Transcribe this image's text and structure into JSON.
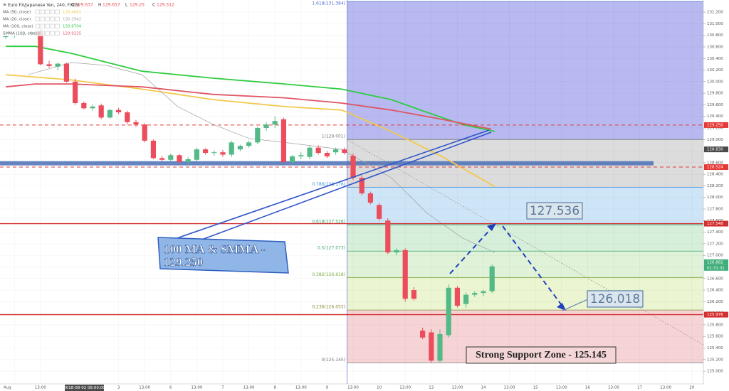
{
  "chart_data": {
    "type": "candlestick",
    "symbol": "Euro FX/Japanese Yen, 240, FXCM",
    "ohlc": [
      {
        "key": "O",
        "value": 129.637
      },
      {
        "key": "H",
        "value": 129.657
      },
      {
        "key": "L",
        "value": 129.25
      },
      {
        "key": "C",
        "value": 129.512
      }
    ],
    "up_color": "#53b987",
    "down_color": "#eb4d5c",
    "open": [
      130.77,
      130.79,
      130.8,
      130.82,
      130.86,
      130.3,
      130.26,
      130.31,
      130.0,
      129.63,
      129.54,
      129.59,
      129.38,
      129.51,
      129.47,
      129.3,
      129.26,
      128.98,
      128.68,
      128.65,
      128.73,
      128.61,
      128.65,
      128.83,
      128.77,
      128.78,
      128.74,
      128.83,
      128.89,
      128.95,
      129.2,
      129.26,
      129.35,
      128.61,
      128.71,
      128.7,
      128.86,
      128.77,
      128.78,
      128.83,
      128.72,
      128.34,
      128.07,
      127.87,
      127.6,
      127.05,
      127.09,
      126.4,
      125.7,
      125.67,
      125.18,
      125.62,
      126.44,
      126.16,
      126.32,
      126.35,
      126.38
    ],
    "high": [
      130.82,
      130.84,
      130.86,
      130.88,
      130.89,
      130.36,
      130.33,
      130.33,
      130.05,
      129.66,
      129.6,
      129.62,
      129.53,
      129.55,
      129.5,
      129.34,
      129.28,
      129.0,
      128.72,
      128.76,
      128.75,
      128.7,
      128.86,
      128.85,
      128.81,
      128.82,
      128.98,
      128.91,
      128.98,
      129.22,
      129.3,
      129.4,
      129.38,
      128.73,
      128.78,
      128.89,
      128.9,
      128.8,
      128.86,
      128.86,
      128.76,
      128.38,
      128.1,
      127.9,
      127.64,
      127.12,
      127.12,
      126.45,
      125.75,
      125.72,
      125.72,
      126.5,
      126.47,
      126.36,
      126.38,
      126.4,
      126.84
    ],
    "low": [
      130.74,
      130.76,
      130.78,
      130.79,
      130.28,
      130.24,
      130.2,
      129.98,
      129.6,
      129.52,
      129.5,
      129.35,
      129.36,
      129.44,
      129.26,
      129.22,
      128.95,
      128.66,
      128.62,
      128.62,
      128.58,
      128.58,
      128.62,
      128.74,
      128.72,
      128.7,
      128.7,
      128.8,
      128.86,
      128.92,
      129.15,
      129.2,
      128.58,
      128.58,
      128.66,
      128.66,
      128.74,
      128.68,
      128.74,
      128.74,
      128.3,
      128.04,
      127.88,
      127.6,
      127.02,
      127.0,
      126.2,
      126.22,
      125.55,
      125.15,
      125.15,
      125.58,
      126.1,
      126.1,
      126.28,
      126.3,
      126.35
    ],
    "close": [
      130.79,
      130.8,
      130.82,
      130.86,
      130.3,
      130.27,
      130.31,
      130.0,
      129.63,
      129.54,
      129.57,
      129.38,
      129.51,
      129.47,
      129.3,
      129.26,
      128.98,
      128.68,
      128.65,
      128.73,
      128.61,
      128.66,
      128.83,
      128.77,
      128.78,
      128.74,
      128.95,
      128.89,
      128.95,
      129.2,
      129.26,
      129.32,
      128.61,
      128.71,
      128.73,
      128.86,
      128.77,
      128.71,
      128.83,
      128.77,
      128.34,
      128.07,
      127.91,
      127.63,
      127.05,
      127.09,
      126.25,
      126.25,
      125.58,
      125.18,
      125.64,
      126.44,
      126.13,
      126.32,
      126.35,
      126.38,
      126.81
    ],
    "overlays": [
      {
        "name": "MA (50, close)",
        "legend_value": 130.4061,
        "color": "#f2c94c",
        "x": [
          0,
          7.5,
          15.7,
          23.9,
          32.1,
          38.7,
          44.4,
          50.2,
          56.3
        ],
        "values": [
          130.12,
          130.03,
          129.87,
          129.69,
          129.57,
          129.51,
          129.14,
          128.71,
          128.19
        ]
      },
      {
        "name": "MA (20, close)",
        "legend_value": 130.2942,
        "color": "#a0a0a0",
        "x": [
          2.6,
          7.5,
          11.6,
          15.7,
          19.8,
          23.9,
          28,
          32.1,
          38.7,
          44.4,
          48.5,
          52.6,
          56.3
        ],
        "values": [
          130.12,
          130.33,
          130.28,
          130.12,
          129.57,
          129.26,
          129.02,
          128.95,
          128.83,
          128.34,
          127.73,
          127.3,
          127.05
        ]
      },
      {
        "name": "MA (100, close)",
        "legend_value": 130.8704,
        "color": "#2ecc40",
        "x": [
          0,
          3.4,
          7.5,
          15.7,
          23.9,
          32.1,
          38.7,
          44.4,
          48.5,
          52.6,
          56.3
        ],
        "values": [
          130.61,
          130.61,
          130.49,
          130.18,
          130.06,
          129.96,
          129.87,
          129.69,
          129.47,
          129.26,
          129.14
        ]
      },
      {
        "name": "SMMA (100, close)",
        "legend_value": 129.9235,
        "color": "#e05563",
        "x": [
          0,
          3.4,
          7.5,
          15.7,
          23.9,
          32.1,
          38.7,
          44.4,
          50.2,
          55.9
        ],
        "values": [
          129.91,
          129.96,
          129.96,
          129.91,
          129.78,
          129.72,
          129.63,
          129.51,
          129.35,
          129.18
        ]
      }
    ],
    "x_labels": [
      "Aug",
      "13:00",
      null,
      null,
      "3",
      "13:00",
      "6",
      "13:00",
      "7",
      "13:00",
      "8",
      "13:00",
      "9",
      "13:00",
      "10",
      "13:00",
      "13",
      "13:00",
      "14",
      "13:00",
      "15",
      "13:00",
      "16",
      "13:00",
      "17",
      "13:00",
      "20"
    ],
    "cursor_label": "2018-08-02 08:00:00",
    "ylim": [
      124.78,
      131.41
    ],
    "yticks": [
      {
        "value": 131.2,
        "label": "131.200"
      },
      {
        "value": 131,
        "label": "131.000"
      },
      {
        "value": 130.8,
        "label": "130.800"
      },
      {
        "value": 130.6,
        "label": "130.600"
      },
      {
        "value": 130.4,
        "label": "130.400"
      },
      {
        "value": 130.2,
        "label": "130.200"
      },
      {
        "value": 130,
        "label": "130.000"
      },
      {
        "value": 129.8,
        "label": "129.800"
      },
      {
        "value": 129.6,
        "label": "129.600"
      },
      {
        "value": 129.4,
        "label": "129.400"
      },
      {
        "value": 129.2,
        "label": "129.200"
      },
      {
        "value": 129,
        "label": "129.000"
      },
      {
        "value": 128.8,
        "label": "128.800"
      },
      {
        "value": 128.6,
        "label": "128.600"
      },
      {
        "value": 128.4,
        "label": "128.400"
      },
      {
        "value": 128.2,
        "label": "128.200"
      },
      {
        "value": 128,
        "label": "128.000"
      },
      {
        "value": 127.8,
        "label": "127.800"
      },
      {
        "value": 127.6,
        "label": "127.600"
      },
      {
        "value": 127.4,
        "label": "127.400"
      },
      {
        "value": 127.2,
        "label": "127.200"
      },
      {
        "value": 127,
        "label": "127.000"
      },
      {
        "value": 126.8,
        "label": "126.800"
      },
      {
        "value": 126.6,
        "label": "126.600"
      },
      {
        "value": 126.4,
        "label": "126.400"
      },
      {
        "value": 126.2,
        "label": "126.200"
      },
      {
        "value": 126,
        "label": "126.000"
      },
      {
        "value": 125.8,
        "label": "125.800"
      },
      {
        "value": 125.6,
        "label": "125.600"
      },
      {
        "value": 125.4,
        "label": "125.400"
      },
      {
        "value": 125.2,
        "label": "125.200"
      },
      {
        "value": 125,
        "label": "125.000"
      }
    ],
    "grid": true,
    "fib_levels": [
      {
        "value": 131.384,
        "label": "1.618(131.384)",
        "color": "#4d6fd0"
      },
      {
        "value": 129.001,
        "label": "1(129.001)",
        "color": "#777777"
      },
      {
        "value": 128.176,
        "label": "0.786(128.176)",
        "color": "#3d8fd6"
      },
      {
        "value": 127.528,
        "label": "0.618(127.528)",
        "color": "#3aa76d"
      },
      {
        "value": 127.073,
        "label": "0.5(127.073)",
        "color": "#3aa76d"
      },
      {
        "value": 126.618,
        "label": "0.382(126.618)",
        "color": "#7aa83a"
      },
      {
        "value": 126.055,
        "label": "0.236(126.055)",
        "color": "#8a8a3a"
      },
      {
        "value": 125.145,
        "label": "0(125.145)",
        "color": "#777777"
      }
    ],
    "zone_colors": [
      "#b7b9f0",
      "#dcdcdc",
      "#cde5f7",
      "#d6efda",
      "#e0f2d8",
      "#ebf5d1",
      "#f6d4d6"
    ],
    "levels": [
      {
        "value": 129.25,
        "label": "129.250",
        "dashed": true,
        "color": "#e53935"
      },
      {
        "value": 128.524,
        "label": "128.524",
        "dashed": true,
        "color": "#e53935"
      },
      {
        "value": 127.548,
        "label": "127.548",
        "dashed": false,
        "color": "#d32f2f"
      },
      {
        "value": 125.976,
        "label": "125.976",
        "dashed": false,
        "color": "#d32f2f"
      }
    ],
    "support_band": {
      "value": 128.59,
      "color": "#4a6fb5"
    },
    "price_tags": [
      {
        "value": 128.83,
        "label": "128.830",
        "color": "#4a4a4a"
      },
      {
        "value": 126.882,
        "label": "126.882",
        "color": "#3fae7a",
        "timer": "01:31:31"
      }
    ],
    "annotations": [
      {
        "value": 127.536
      },
      {
        "value": 126.018
      },
      {
        "text": "Strong Support Zone - 125.145"
      },
      {
        "lines": [
          "100 MA & SMMA  -",
          "129.250"
        ]
      }
    ]
  }
}
